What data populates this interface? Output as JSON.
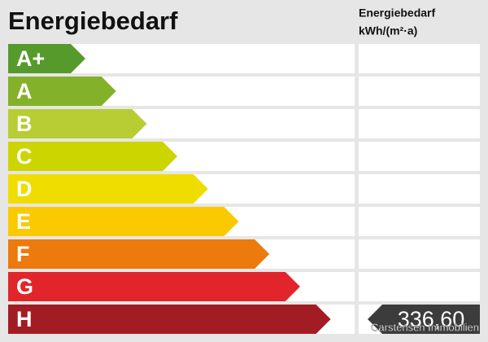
{
  "header": {
    "title": "Energiebedarf",
    "column_title": "Energiebedarf",
    "column_unit": "kWh/(m²·a)"
  },
  "classes": [
    {
      "label": "A+",
      "color": "#569a2c"
    },
    {
      "label": "A",
      "color": "#84b12a"
    },
    {
      "label": "B",
      "color": "#b7cd33"
    },
    {
      "label": "C",
      "color": "#cdd500"
    },
    {
      "label": "D",
      "color": "#f0dd00"
    },
    {
      "label": "E",
      "color": "#fbc900"
    },
    {
      "label": "F",
      "color": "#ec7a0d"
    },
    {
      "label": "G",
      "color": "#e2252b"
    },
    {
      "label": "H",
      "color": "#a21d23"
    }
  ],
  "indicator": {
    "value": "336,60",
    "row": 8,
    "color": "#3c3c3c"
  },
  "watermark": "Carstensen Immobilien"
}
